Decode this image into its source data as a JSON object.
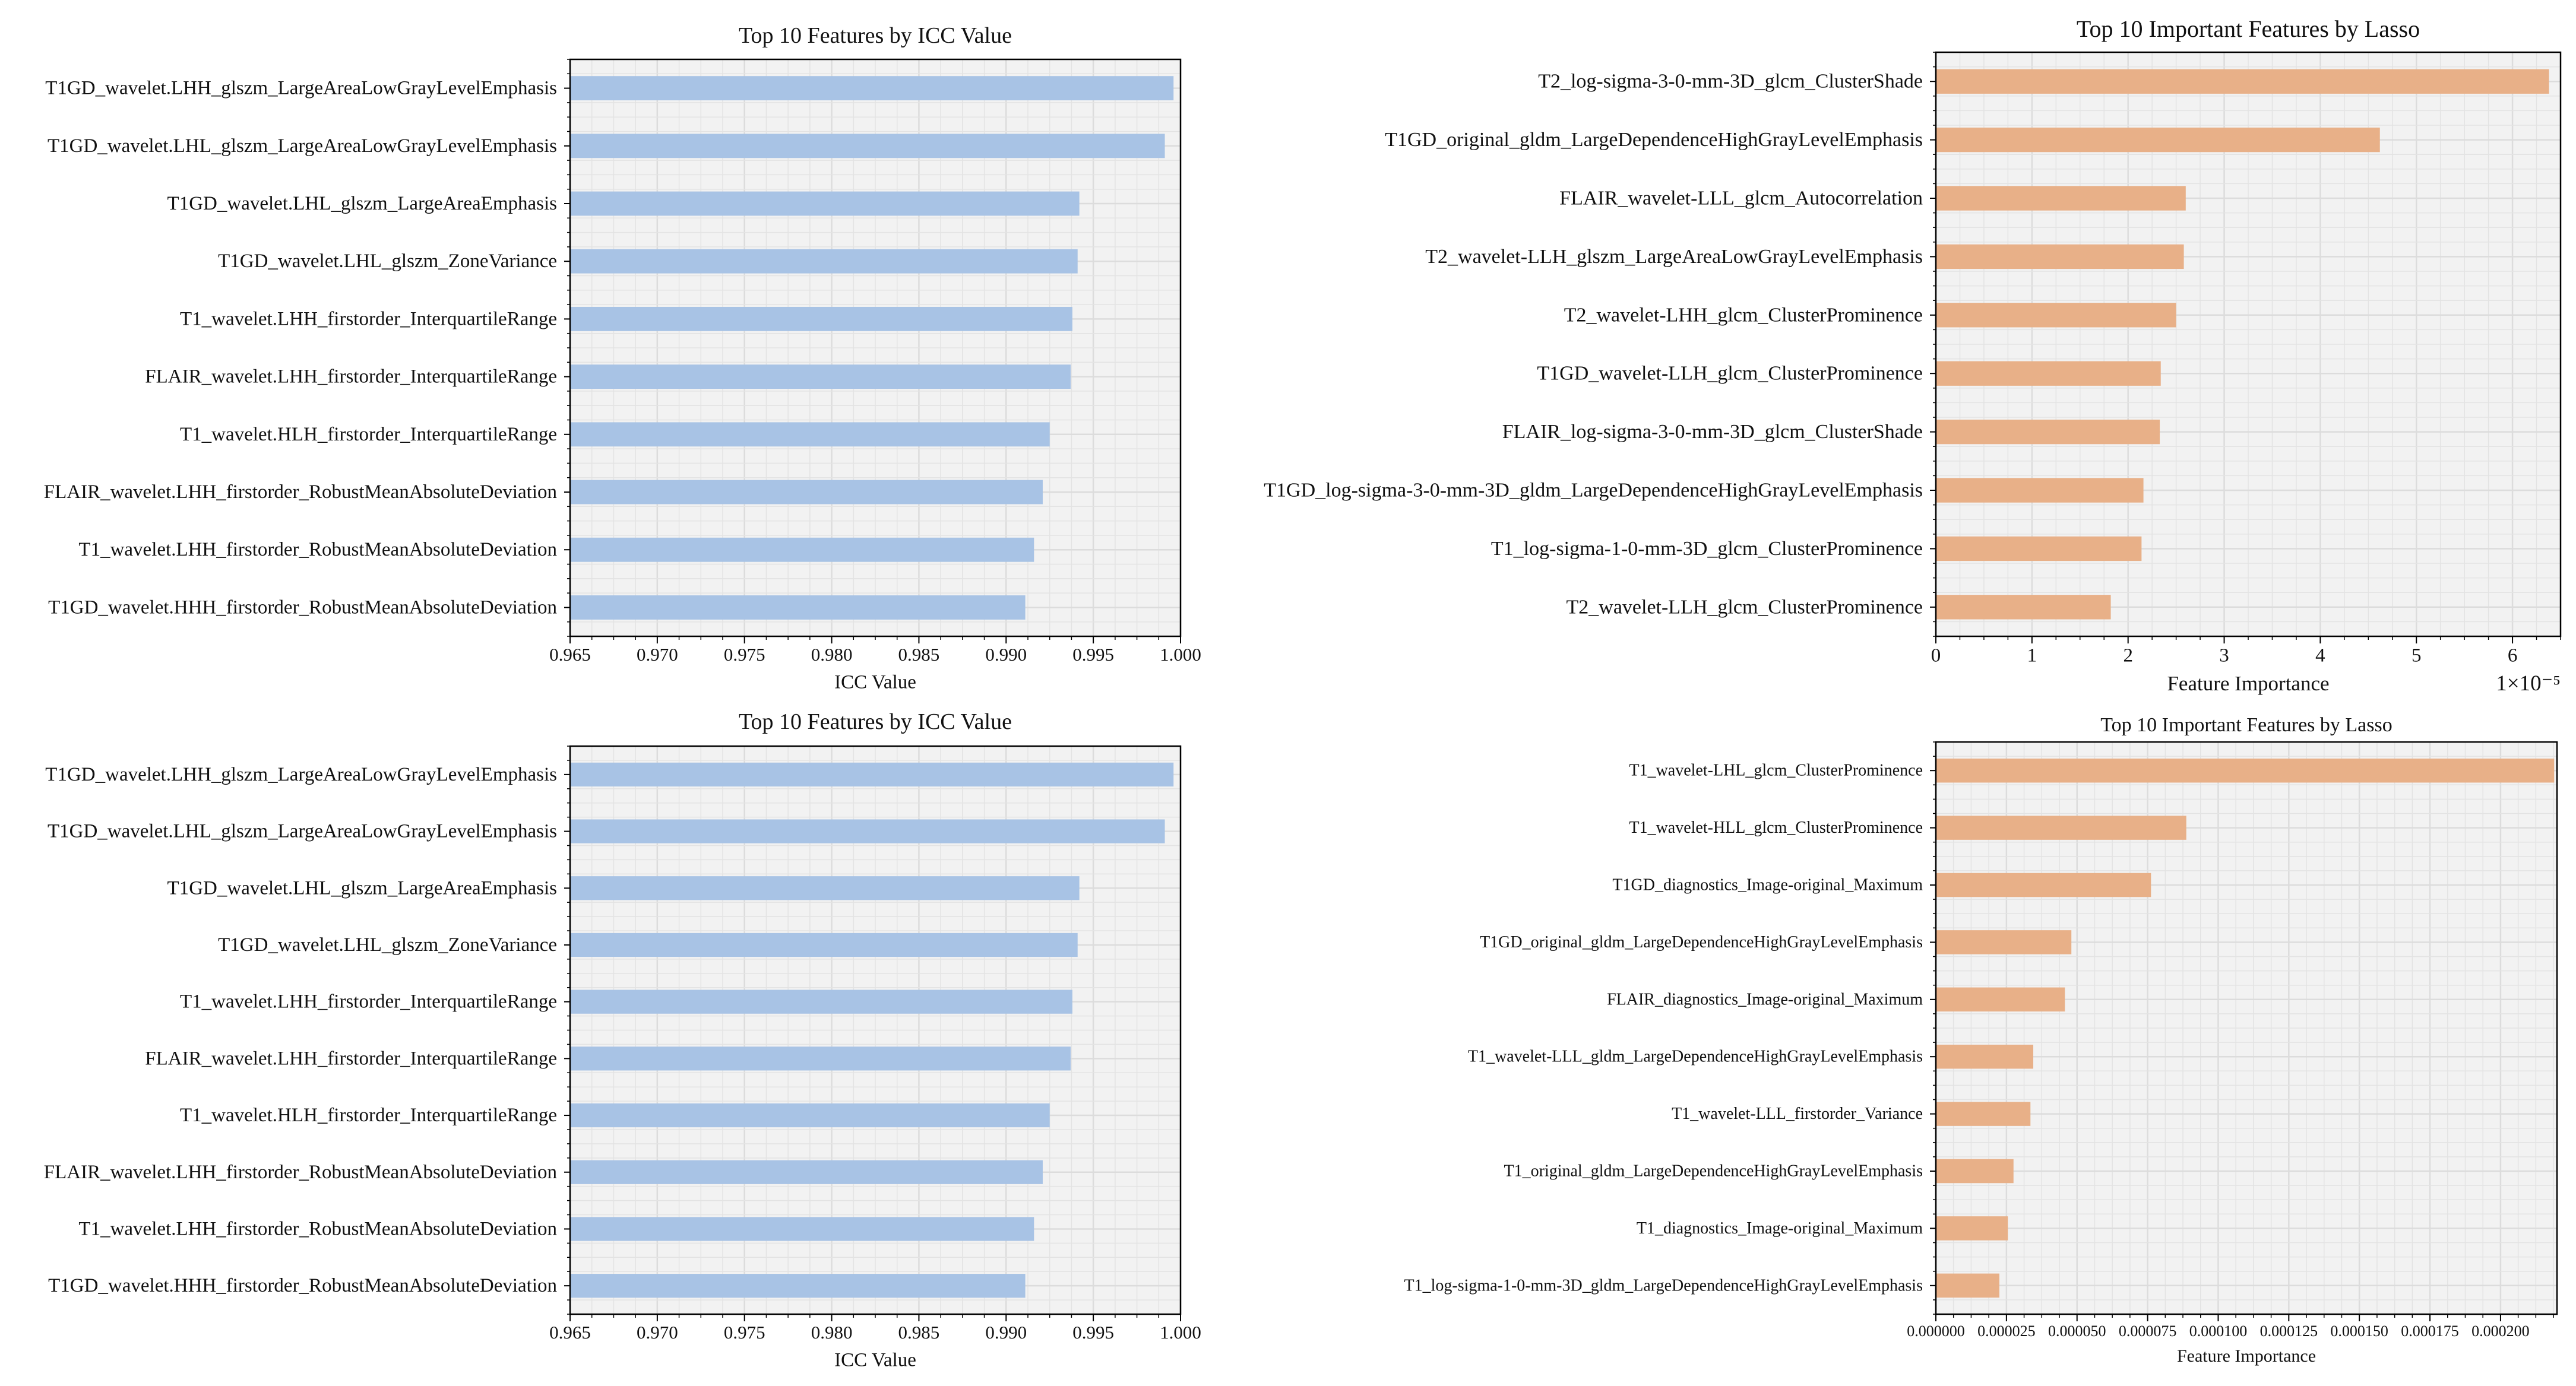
{
  "colors": {
    "icc_bar": "#a8c3e5",
    "lasso_bar": "#e8b088",
    "plot_bg": "#f2f2f2",
    "grid": "#dcdcdc"
  },
  "chart_data": [
    {
      "type": "bar",
      "orientation": "horizontal",
      "title": "Top 10 Features by ICC Value",
      "xlabel": "ICC Value",
      "ylabel": "",
      "xlim": [
        0.965,
        1.0
      ],
      "xticks": [
        "0.965",
        "0.970",
        "0.975",
        "0.980",
        "0.985",
        "0.990",
        "0.995",
        "1.000"
      ],
      "xtick_values": [
        0.965,
        0.97,
        0.975,
        0.98,
        0.985,
        0.99,
        0.995,
        1.0
      ],
      "offset_text": "",
      "grid": true,
      "categories": [
        "T1GD_wavelet.LHH_glszm_LargeAreaLowGrayLevelEmphasis",
        "T1GD_wavelet.LHL_glszm_LargeAreaLowGrayLevelEmphasis",
        "T1GD_wavelet.LHL_glszm_LargeAreaEmphasis",
        "T1GD_wavelet.LHL_glszm_ZoneVariance",
        "T1_wavelet.LHH_firstorder_InterquartileRange",
        "FLAIR_wavelet.LHH_firstorder_InterquartileRange",
        "T1_wavelet.HLH_firstorder_InterquartileRange",
        "FLAIR_wavelet.LHH_firstorder_RobustMeanAbsoluteDeviation",
        "T1_wavelet.LHH_firstorder_RobustMeanAbsoluteDeviation",
        "T1GD_wavelet.HHH_firstorder_RobustMeanAbsoluteDeviation"
      ],
      "values": [
        0.9996,
        0.9991,
        0.9942,
        0.9941,
        0.9938,
        0.9937,
        0.9925,
        0.9921,
        0.9916,
        0.9911
      ]
    },
    {
      "type": "bar",
      "orientation": "horizontal",
      "title": "Top 10 Important Features by Lasso",
      "xlabel": "Feature Importance",
      "ylabel": "",
      "xlim": [
        0,
        6.5
      ],
      "xticks": [
        "0",
        "1",
        "2",
        "3",
        "4",
        "5",
        "6"
      ],
      "xtick_values": [
        0,
        1,
        2,
        3,
        4,
        5,
        6
      ],
      "offset_text": "1×10⁻⁵",
      "grid": true,
      "categories": [
        "T2_log-sigma-3-0-mm-3D_glcm_ClusterShade",
        "T1GD_original_gldm_LargeDependenceHighGrayLevelEmphasis",
        "FLAIR_wavelet-LLL_glcm_Autocorrelation",
        "T2_wavelet-LLH_glszm_LargeAreaLowGrayLevelEmphasis",
        "T2_wavelet-LHH_glcm_ClusterProminence",
        "T1GD_wavelet-LLH_glcm_ClusterProminence",
        "FLAIR_log-sigma-3-0-mm-3D_glcm_ClusterShade",
        "T1GD_log-sigma-3-0-mm-3D_gldm_LargeDependenceHighGrayLevelEmphasis",
        "T1_log-sigma-1-0-mm-3D_glcm_ClusterProminence",
        "T2_wavelet-LLH_glcm_ClusterProminence"
      ],
      "values": [
        6.38,
        4.62,
        2.6,
        2.58,
        2.5,
        2.34,
        2.33,
        2.16,
        2.14,
        1.82
      ]
    },
    {
      "type": "bar",
      "orientation": "horizontal",
      "title": "Top 10 Features by ICC Value",
      "xlabel": "ICC Value",
      "ylabel": "",
      "xlim": [
        0.965,
        1.0
      ],
      "xticks": [
        "0.965",
        "0.970",
        "0.975",
        "0.980",
        "0.985",
        "0.990",
        "0.995",
        "1.000"
      ],
      "xtick_values": [
        0.965,
        0.97,
        0.975,
        0.98,
        0.985,
        0.99,
        0.995,
        1.0
      ],
      "offset_text": "",
      "grid": true,
      "categories": [
        "T1GD_wavelet.LHH_glszm_LargeAreaLowGrayLevelEmphasis",
        "T1GD_wavelet.LHL_glszm_LargeAreaLowGrayLevelEmphasis",
        "T1GD_wavelet.LHL_glszm_LargeAreaEmphasis",
        "T1GD_wavelet.LHL_glszm_ZoneVariance",
        "T1_wavelet.LHH_firstorder_InterquartileRange",
        "FLAIR_wavelet.LHH_firstorder_InterquartileRange",
        "T1_wavelet.HLH_firstorder_InterquartileRange",
        "FLAIR_wavelet.LHH_firstorder_RobustMeanAbsoluteDeviation",
        "T1_wavelet.LHH_firstorder_RobustMeanAbsoluteDeviation",
        "T1GD_wavelet.HHH_firstorder_RobustMeanAbsoluteDeviation"
      ],
      "values": [
        0.9996,
        0.9991,
        0.9942,
        0.9941,
        0.9938,
        0.9937,
        0.9925,
        0.9921,
        0.9916,
        0.9911
      ]
    },
    {
      "type": "bar",
      "orientation": "horizontal",
      "title": "Top 10 Important Features by Lasso",
      "xlabel": "Feature Importance",
      "ylabel": "",
      "xlim": [
        0,
        0.00022
      ],
      "xticks": [
        "0.000000",
        "0.000025",
        "0.000050",
        "0.000075",
        "0.000100",
        "0.000125",
        "0.000150",
        "0.000175",
        "0.000200"
      ],
      "xtick_values": [
        0,
        2.5e-05,
        5e-05,
        7.5e-05,
        0.0001,
        0.000125,
        0.00015,
        0.000175,
        0.0002
      ],
      "offset_text": "",
      "grid": true,
      "categories": [
        "T1_wavelet-LHL_glcm_ClusterProminence",
        "T1_wavelet-HLL_glcm_ClusterProminence",
        "T1GD_diagnostics_Image-original_Maximum",
        "T1GD_original_gldm_LargeDependenceHighGrayLevelEmphasis",
        "FLAIR_diagnostics_Image-original_Maximum",
        "T1_wavelet-LLL_gldm_LargeDependenceHighGrayLevelEmphasis",
        "T1_wavelet-LLL_firstorder_Variance",
        "T1_original_gldm_LargeDependenceHighGrayLevelEmphasis",
        "T1_diagnostics_Image-original_Maximum",
        "T1_log-sigma-1-0-mm-3D_gldm_LargeDependenceHighGrayLevelEmphasis"
      ],
      "values": [
        0.000219,
        8.87e-05,
        7.62e-05,
        4.8e-05,
        4.57e-05,
        3.45e-05,
        3.35e-05,
        2.75e-05,
        2.55e-05,
        2.25e-05
      ]
    }
  ]
}
